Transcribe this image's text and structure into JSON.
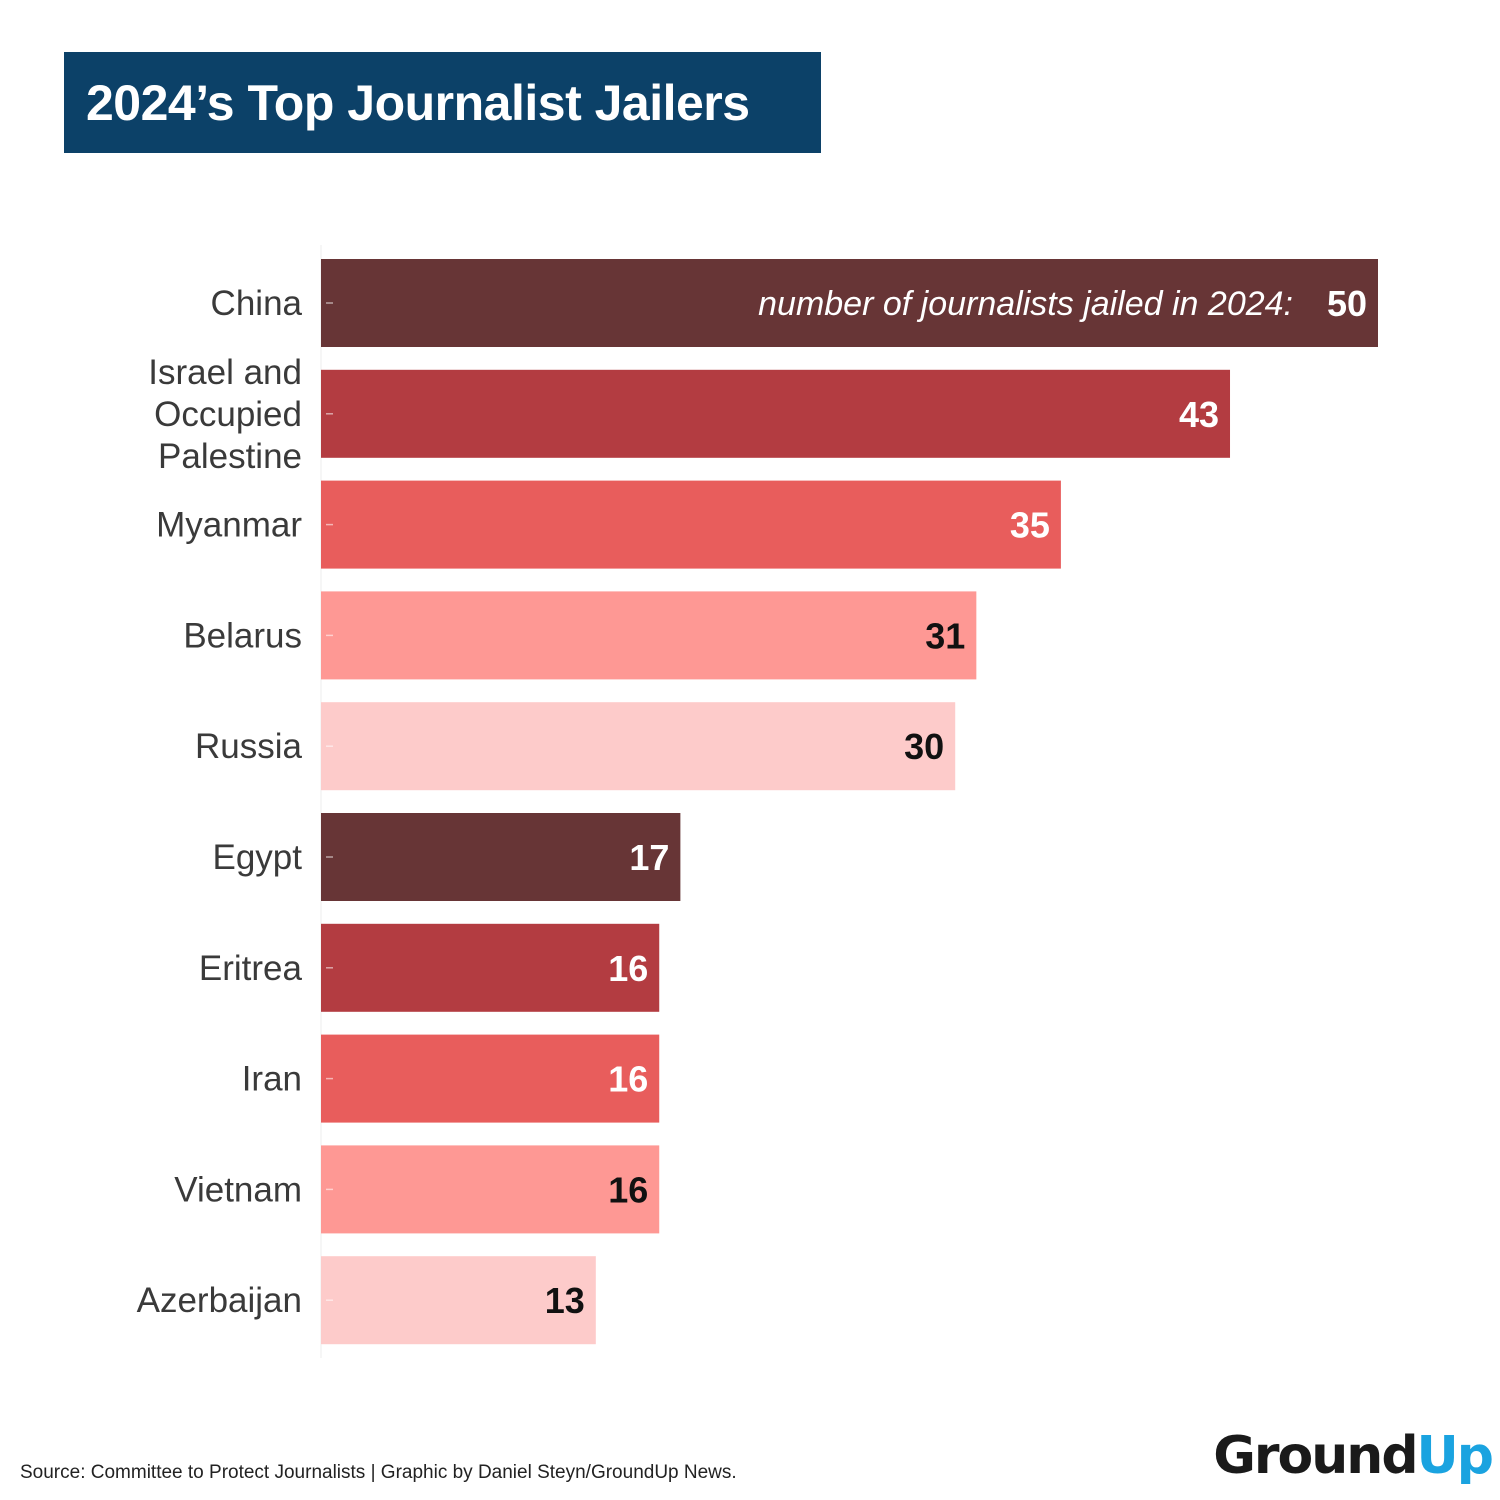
{
  "title": "2024’s Top Journalist Jailers",
  "source": "Source: Committee to Protect Journalists | Graphic by Daniel Steyn/GroundUp News.",
  "logo": {
    "part1": "Ground",
    "part2": "Up"
  },
  "chart_data": {
    "type": "bar",
    "orientation": "horizontal",
    "title": "2024’s Top Journalist Jailers",
    "categories": [
      [
        "China"
      ],
      [
        "Israel and",
        "Occupied",
        "Palestine"
      ],
      [
        "Myanmar"
      ],
      [
        "Belarus"
      ],
      [
        "Russia"
      ],
      [
        "Egypt"
      ],
      [
        "Eritrea"
      ],
      [
        "Iran"
      ],
      [
        "Vietnam"
      ],
      [
        "Azerbaijan"
      ]
    ],
    "values": [
      50,
      43,
      35,
      31,
      30,
      17,
      16,
      16,
      16,
      13
    ],
    "value_prefix_first": "number of journalists jailed in 2024:",
    "bar_colors": [
      "#673536",
      "#b33c41",
      "#e85d5c",
      "#fe9894",
      "#fdcbca",
      "#673536",
      "#b33c41",
      "#e85d5c",
      "#fe9894",
      "#fdcbca"
    ],
    "label_colors": [
      "#ffffff",
      "#ffffff",
      "#ffffff",
      "#111111",
      "#111111",
      "#ffffff",
      "#ffffff",
      "#ffffff",
      "#111111",
      "#111111"
    ],
    "xlim": [
      0,
      50
    ],
    "grid": false,
    "legend": "none"
  }
}
